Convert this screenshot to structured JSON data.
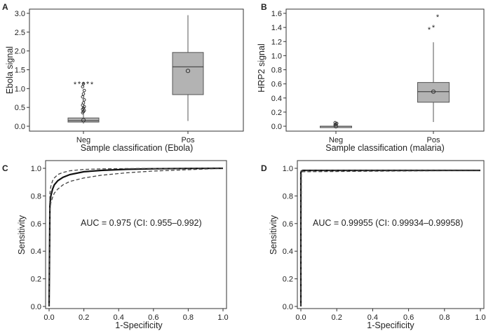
{
  "colors": {
    "box_fill": "#b3b3b3",
    "box_stroke": "#555555",
    "frame": "#333333",
    "curve": "#111111",
    "ci_curve": "#444444"
  },
  "chart_data": [
    {
      "panel": "A",
      "type": "box",
      "title": "",
      "xlabel": "Sample classification (Ebola)",
      "ylabel": "Ebola signal",
      "ylim": [
        0,
        3.0
      ],
      "yticks": [
        "0.0",
        "0.5",
        "1.0",
        "1.5",
        "2.0",
        "2.5",
        "3.0"
      ],
      "categories": [
        "Neg",
        "Pos"
      ],
      "boxes": [
        {
          "category": "Neg",
          "min": 0.07,
          "q1": 0.11,
          "median": 0.15,
          "q3": 0.22,
          "max": 0.33,
          "mean": 0.16,
          "outliers": [
            0.36,
            0.39,
            0.42,
            0.45,
            0.48,
            0.52,
            0.56,
            0.62,
            0.7,
            0.78,
            0.86,
            0.95,
            1.05,
            1.13
          ],
          "far_outliers": [
            1.12,
            1.13,
            1.12,
            1.13,
            1.12
          ]
        },
        {
          "category": "Pos",
          "min": 0.14,
          "q1": 0.84,
          "median": 1.58,
          "q3": 1.96,
          "max": 2.95,
          "mean": 1.47,
          "outliers": [],
          "far_outliers": []
        }
      ],
      "grid": false
    },
    {
      "panel": "B",
      "type": "box",
      "title": "",
      "xlabel": "Sample classification (malaria)",
      "ylabel": "HRP2 signal",
      "ylim": [
        0,
        1.6
      ],
      "yticks": [
        "0.0",
        "0.2",
        "0.4",
        "0.6",
        "0.8",
        "1.0",
        "1.2",
        "1.4",
        "1.6"
      ],
      "categories": [
        "Neg",
        "Pos"
      ],
      "boxes": [
        {
          "category": "Neg",
          "min": -0.02,
          "q1": -0.01,
          "median": 0.0,
          "q3": 0.0,
          "max": 0.01,
          "mean": 0.0,
          "outliers": [
            0.02,
            0.03,
            0.04,
            0.05
          ],
          "far_outliers": []
        },
        {
          "category": "Pos",
          "min": 0.06,
          "q1": 0.34,
          "median": 0.49,
          "q3": 0.62,
          "max": 1.19,
          "mean": 0.49,
          "outliers": [],
          "far_outliers": [
            1.37,
            1.4,
            1.55
          ]
        }
      ],
      "grid": false
    },
    {
      "panel": "C",
      "type": "line",
      "title": "",
      "xlabel": "1-Specificity",
      "ylabel": "Sensitivity",
      "xlim": [
        0,
        1.0
      ],
      "ylim": [
        0,
        1.0
      ],
      "xticks": [
        "0.0",
        "0.2",
        "0.4",
        "0.6",
        "0.8",
        "1.0"
      ],
      "yticks": [
        "0.0",
        "0.2",
        "0.4",
        "0.6",
        "0.8",
        "1.0"
      ],
      "annotation": "AUC = 0.975 (CI: 0.955–0.992)",
      "series": [
        {
          "role": "roc",
          "x": [
            0,
            0.005,
            0.01,
            0.02,
            0.03,
            0.05,
            0.08,
            0.12,
            0.2,
            0.3,
            0.45,
            0.6,
            0.8,
            1.0
          ],
          "y": [
            0,
            0.74,
            0.8,
            0.85,
            0.88,
            0.91,
            0.935,
            0.955,
            0.975,
            0.985,
            0.993,
            0.997,
            0.999,
            1.0
          ]
        },
        {
          "role": "ci_upper",
          "x": [
            0,
            0.005,
            0.01,
            0.02,
            0.03,
            0.05,
            0.08,
            0.12,
            0.2,
            0.3,
            0.45,
            0.6,
            0.8,
            1.0
          ],
          "y": [
            0,
            0.82,
            0.87,
            0.91,
            0.93,
            0.955,
            0.97,
            0.982,
            0.992,
            0.996,
            0.998,
            0.999,
            1.0,
            1.0
          ]
        },
        {
          "role": "ci_lower",
          "x": [
            0,
            0.005,
            0.01,
            0.02,
            0.03,
            0.05,
            0.08,
            0.12,
            0.2,
            0.3,
            0.45,
            0.6,
            0.8,
            1.0
          ],
          "y": [
            0,
            0.7,
            0.75,
            0.79,
            0.82,
            0.85,
            0.88,
            0.905,
            0.93,
            0.95,
            0.968,
            0.98,
            0.99,
            1.0
          ]
        }
      ],
      "grid": false
    },
    {
      "panel": "D",
      "type": "line",
      "title": "",
      "xlabel": "1-Specificity",
      "ylabel": "Sensitivity",
      "xlim": [
        0,
        1.0
      ],
      "ylim": [
        0,
        1.0
      ],
      "xticks": [
        "0.0",
        "0.2",
        "0.4",
        "0.6",
        "0.8",
        "1.0"
      ],
      "yticks": [
        "0.0",
        "0.2",
        "0.4",
        "0.6",
        "0.8",
        "1.0"
      ],
      "annotation": "AUC = 0.99955 (CI: 0.99934–0.99958)",
      "series": [
        {
          "role": "roc",
          "x": [
            0,
            0.0,
            0.005,
            0.01,
            1.0
          ],
          "y": [
            0,
            0.97,
            0.98,
            0.985,
            0.985
          ]
        },
        {
          "role": "ci_upper",
          "x": [
            0,
            0.0,
            0.005,
            1.0
          ],
          "y": [
            0,
            0.98,
            0.985,
            0.985
          ]
        },
        {
          "role": "ci_lower",
          "x": [
            0,
            0.003,
            0.006,
            1.0
          ],
          "y": [
            0,
            0.96,
            0.975,
            0.985
          ]
        }
      ],
      "grid": false
    }
  ]
}
